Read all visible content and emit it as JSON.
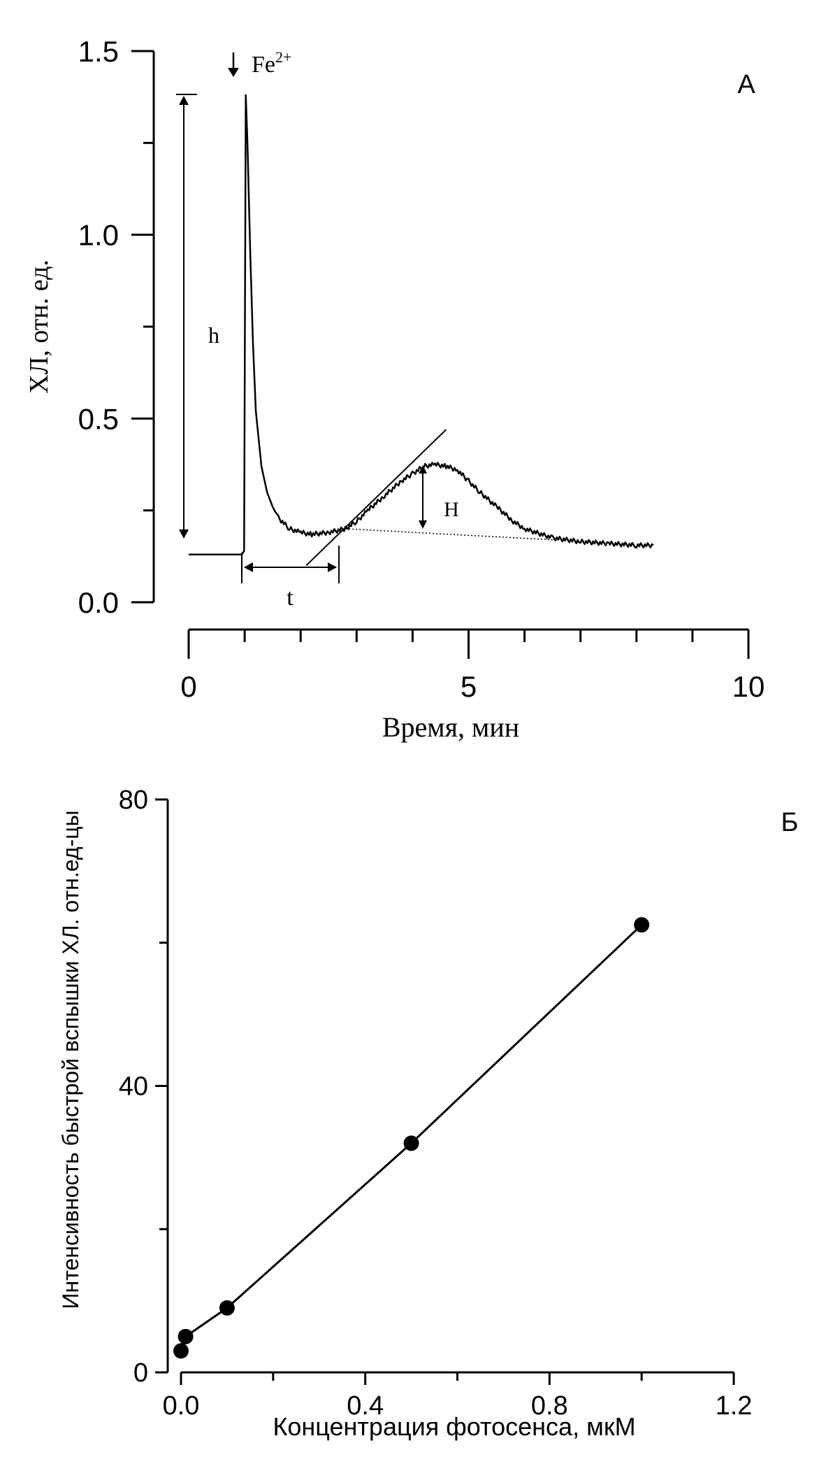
{
  "chart_data": [
    {
      "panel_label": "А",
      "type": "line",
      "xlabel": "Время, мин",
      "ylabel": "ХЛ, отн. ед.",
      "xlim": [
        0,
        10
      ],
      "ylim": [
        0,
        1.5
      ],
      "x_ticks": [
        "0",
        "5",
        "10"
      ],
      "y_ticks": [
        "0.0",
        "0.5",
        "1.0",
        "1.5"
      ],
      "grid": false,
      "annotations": {
        "inducer": "Fe",
        "inducer_charge": "2+",
        "fast_flash_height": "h",
        "slow_flash_height": "H",
        "latent_period": "t"
      },
      "series": [
        {
          "x": [
            0,
            0.5,
            0.95,
            0.99,
            1.02,
            1.05,
            1.1,
            1.15,
            1.2,
            1.3,
            1.4,
            1.5,
            1.6,
            1.8,
            2.0,
            2.2,
            2.5,
            2.8,
            3.0,
            3.2,
            3.5,
            3.8,
            4.0,
            4.2,
            4.4,
            4.6,
            4.8,
            5.0,
            5.2,
            5.5,
            5.8,
            6.0,
            6.5,
            7.0,
            7.5,
            8.0,
            8.3
          ],
          "y": [
            0.13,
            0.13,
            0.13,
            0.14,
            1.38,
            1.25,
            0.95,
            0.7,
            0.52,
            0.37,
            0.3,
            0.26,
            0.23,
            0.2,
            0.19,
            0.185,
            0.19,
            0.2,
            0.22,
            0.25,
            0.29,
            0.33,
            0.35,
            0.37,
            0.375,
            0.37,
            0.36,
            0.33,
            0.3,
            0.26,
            0.22,
            0.2,
            0.175,
            0.165,
            0.16,
            0.155,
            0.155
          ]
        }
      ],
      "baseline_segment": {
        "x": [
          2.8,
          6.5
        ],
        "y": [
          0.2,
          0.17
        ]
      },
      "tangent_segment": {
        "x": [
          2.1,
          4.6
        ],
        "y": [
          0.1,
          0.47
        ]
      }
    },
    {
      "panel_label": "Б",
      "type": "line",
      "xlabel": "Концентрация фотосенса, мкМ",
      "ylabel": "Интенсивность быстрой вспышки ХЛ. отн.ед-цы",
      "xlim": [
        0,
        1.2
      ],
      "ylim": [
        0,
        80
      ],
      "x_ticks": [
        "0.0",
        "0.4",
        "0.8",
        "1.2"
      ],
      "y_ticks": [
        "0",
        "40",
        "80"
      ],
      "grid": false,
      "markers": "filled circles",
      "series": [
        {
          "x": [
            0,
            0.01,
            0.1,
            0.5,
            1.0
          ],
          "y": [
            3,
            5,
            9,
            32,
            62.5
          ]
        }
      ]
    }
  ]
}
